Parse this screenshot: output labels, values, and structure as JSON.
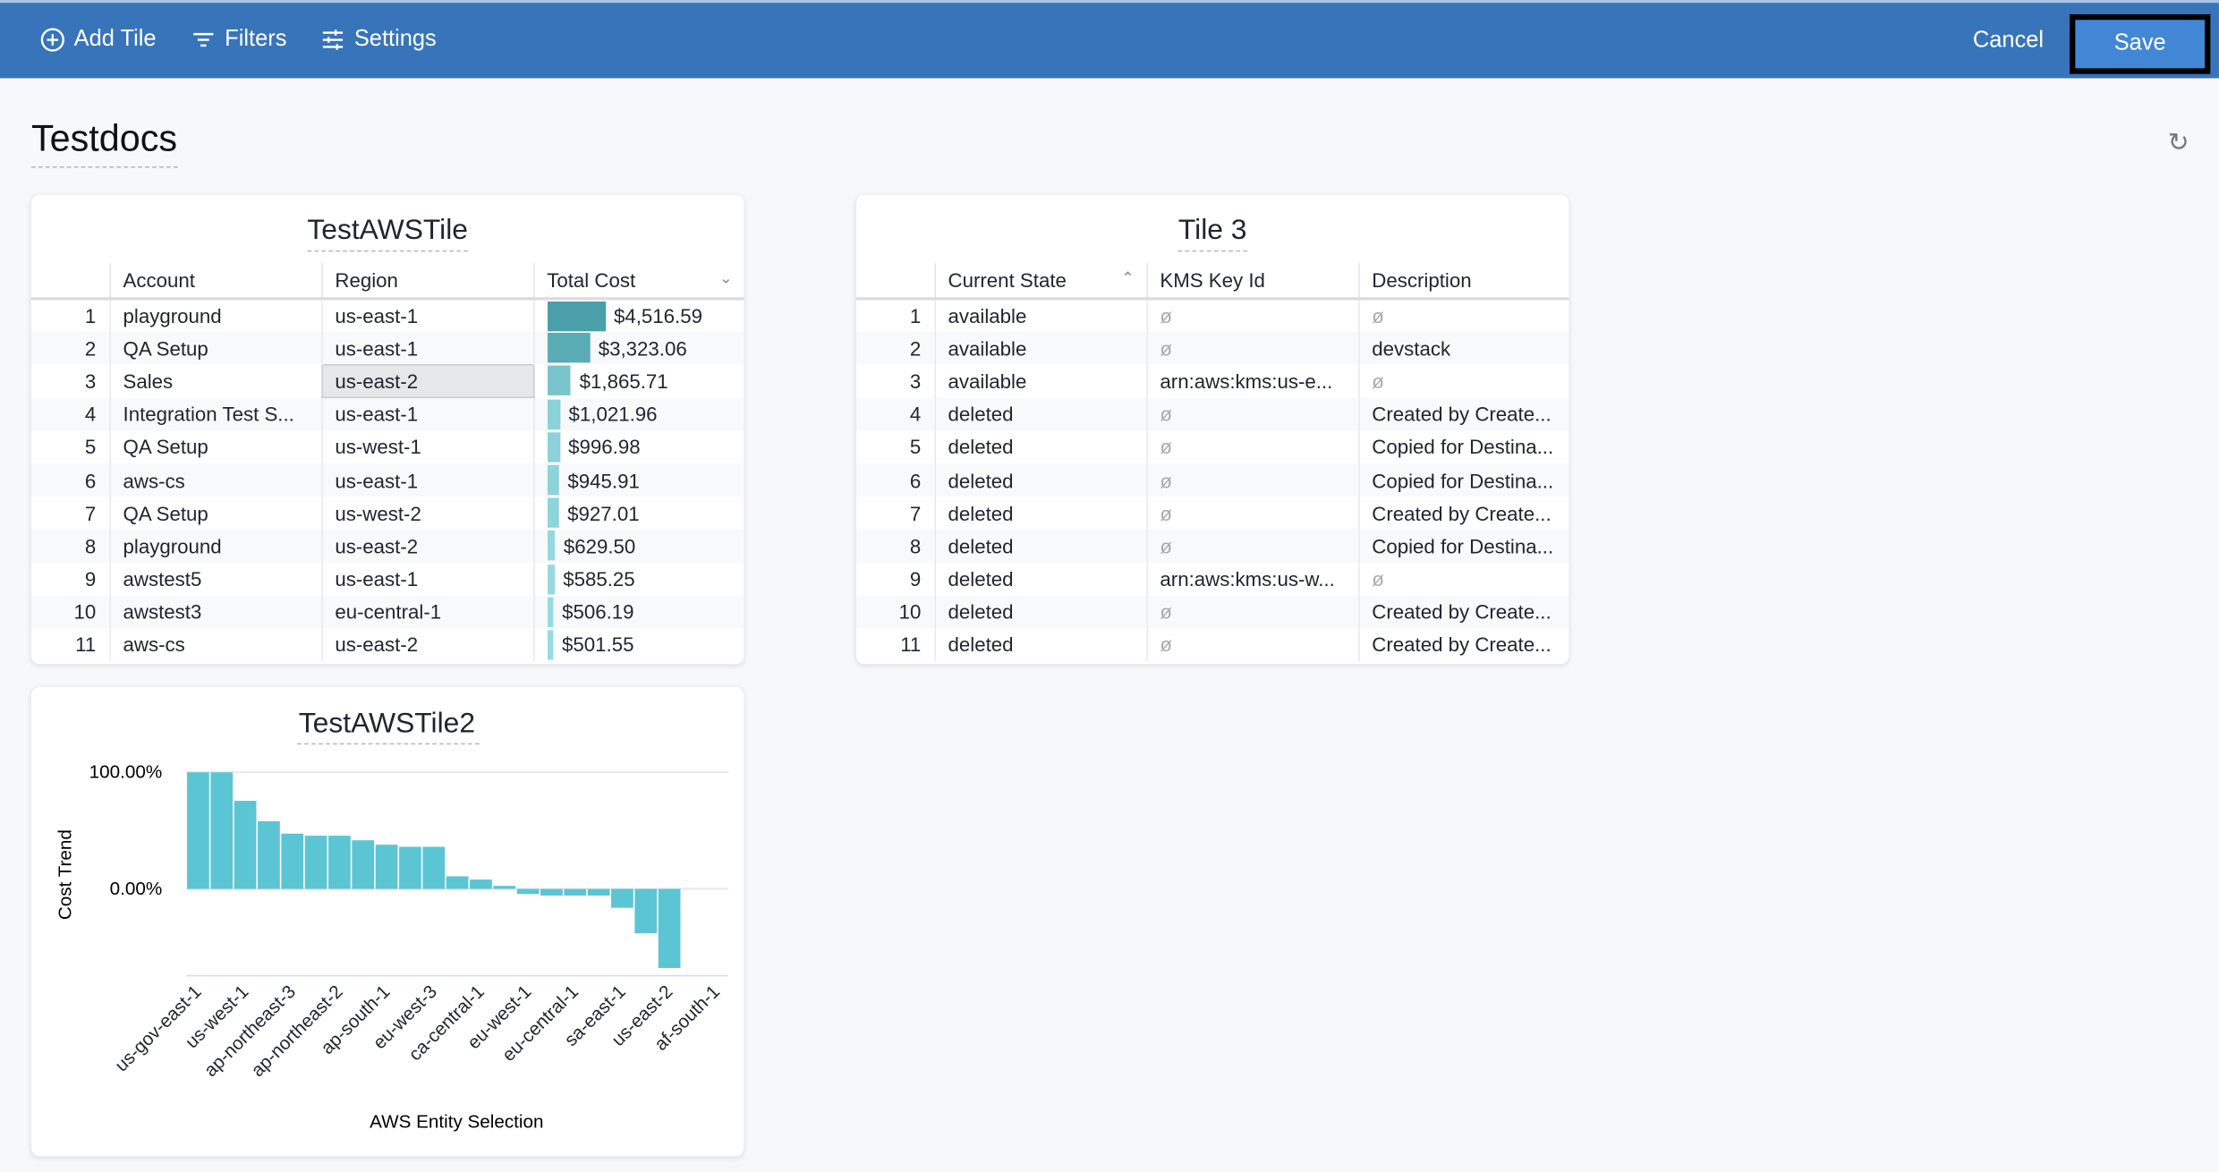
{
  "toolbar": {
    "add_tile": "Add Tile",
    "filters": "Filters",
    "settings": "Settings",
    "cancel": "Cancel",
    "save": "Save"
  },
  "page": {
    "title": "Testdocs"
  },
  "tile1": {
    "title": "TestAWSTile",
    "columns": [
      "Account",
      "Region",
      "Total Cost"
    ],
    "rows": [
      {
        "n": "1",
        "account": "playground",
        "region": "us-east-1",
        "cost": "$4,516.59",
        "value": 4516.59
      },
      {
        "n": "2",
        "account": "QA Setup",
        "region": "us-east-1",
        "cost": "$3,323.06",
        "value": 3323.06
      },
      {
        "n": "3",
        "account": "Sales",
        "region": "us-east-2",
        "cost": "$1,865.71",
        "value": 1865.71
      },
      {
        "n": "4",
        "account": "Integration Test S...",
        "region": "us-east-1",
        "cost": "$1,021.96",
        "value": 1021.96
      },
      {
        "n": "5",
        "account": "QA Setup",
        "region": "us-west-1",
        "cost": "$996.98",
        "value": 996.98
      },
      {
        "n": "6",
        "account": "aws-cs",
        "region": "us-east-1",
        "cost": "$945.91",
        "value": 945.91
      },
      {
        "n": "7",
        "account": "QA Setup",
        "region": "us-west-2",
        "cost": "$927.01",
        "value": 927.01
      },
      {
        "n": "8",
        "account": "playground",
        "region": "us-east-2",
        "cost": "$629.50",
        "value": 629.5
      },
      {
        "n": "9",
        "account": "awstest5",
        "region": "us-east-1",
        "cost": "$585.25",
        "value": 585.25
      },
      {
        "n": "10",
        "account": "awstest3",
        "region": "eu-central-1",
        "cost": "$506.19",
        "value": 506.19
      },
      {
        "n": "11",
        "account": "aws-cs",
        "region": "us-east-2",
        "cost": "$501.55",
        "value": 501.55
      }
    ]
  },
  "tile3": {
    "title": "Tile 3",
    "columns": [
      "Current State",
      "KMS Key Id",
      "Description"
    ],
    "null_symbol": "ø",
    "rows": [
      {
        "n": "1",
        "state": "available",
        "kms": null,
        "desc": null
      },
      {
        "n": "2",
        "state": "available",
        "kms": null,
        "desc": "devstack"
      },
      {
        "n": "3",
        "state": "available",
        "kms": "arn:aws:kms:us-e...",
        "desc": null
      },
      {
        "n": "4",
        "state": "deleted",
        "kms": null,
        "desc": "Created by Create..."
      },
      {
        "n": "5",
        "state": "deleted",
        "kms": null,
        "desc": "Copied for Destina..."
      },
      {
        "n": "6",
        "state": "deleted",
        "kms": null,
        "desc": "Copied for Destina..."
      },
      {
        "n": "7",
        "state": "deleted",
        "kms": null,
        "desc": "Created by Create..."
      },
      {
        "n": "8",
        "state": "deleted",
        "kms": null,
        "desc": "Copied for Destina..."
      },
      {
        "n": "9",
        "state": "deleted",
        "kms": "arn:aws:kms:us-w...",
        "desc": null
      },
      {
        "n": "10",
        "state": "deleted",
        "kms": null,
        "desc": "Created by Create..."
      },
      {
        "n": "11",
        "state": "deleted",
        "kms": null,
        "desc": "Created by Create..."
      }
    ]
  },
  "chart_data": {
    "type": "bar",
    "title": "TestAWSTile2",
    "xlabel": "AWS Entity Selection",
    "ylabel": "Cost Trend",
    "yticks": [
      "100.00%",
      "0.00%"
    ],
    "ylim": [
      -75,
      100
    ],
    "tick_labels": [
      "us-gov-east-1",
      "us-west-1",
      "ap-northeast-3",
      "ap-northeast-2",
      "ap-south-1",
      "eu-west-3",
      "ca-central-1",
      "eu-west-1",
      "eu-central-1",
      "sa-east-1",
      "us-east-2",
      "af-south-1"
    ],
    "values": [
      100,
      100,
      75.5,
      58,
      47.4,
      45.6,
      45.6,
      41.7,
      37.9,
      36.1,
      36.1,
      10.8,
      8,
      2.6,
      -4.4,
      -5.7,
      -5.7,
      -5.7,
      -16.2,
      -38.1,
      -67.8,
      0,
      0
    ],
    "color": "#5bc5d3",
    "grid": true
  },
  "colors": {
    "header": "#3874b9",
    "save": "#4287d6",
    "bar": "#5bc5d3"
  }
}
